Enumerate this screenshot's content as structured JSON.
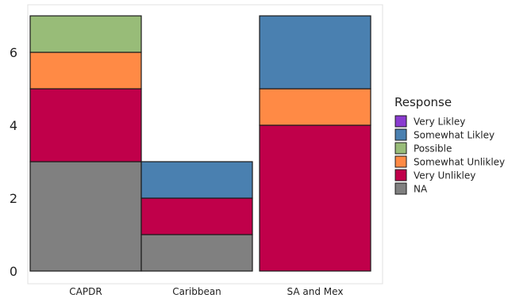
{
  "chart_data": {
    "type": "bar",
    "stacked": true,
    "categories": [
      "CAPDR",
      "Caribbean",
      "SA and Mex"
    ],
    "ylim": [
      0,
      7
    ],
    "yticks": [
      0,
      2,
      4,
      6
    ],
    "grid": false,
    "legend_position": "right",
    "legend_title": "Response",
    "legend_entries": [
      "Very Likley",
      "Somewhat Likley",
      "Possible",
      "Somewhat Unlikley",
      "Very Unlikley",
      "NA"
    ],
    "series": [
      {
        "name": "NA",
        "color": "#808080",
        "values": [
          3,
          1,
          0
        ]
      },
      {
        "name": "Very Unlikley",
        "color": "#C0004A",
        "values": [
          2,
          1,
          4
        ]
      },
      {
        "name": "Somewhat Unlikley",
        "color": "#FF8A45",
        "values": [
          1,
          0,
          1
        ]
      },
      {
        "name": "Possible",
        "color": "#98BC78",
        "values": [
          1,
          0,
          0
        ]
      },
      {
        "name": "Somewhat Likley",
        "color": "#4A80B0",
        "values": [
          0,
          1,
          2
        ]
      },
      {
        "name": "Very Likley",
        "color": "#8A3BD0",
        "values": [
          0,
          0,
          0
        ]
      }
    ]
  }
}
